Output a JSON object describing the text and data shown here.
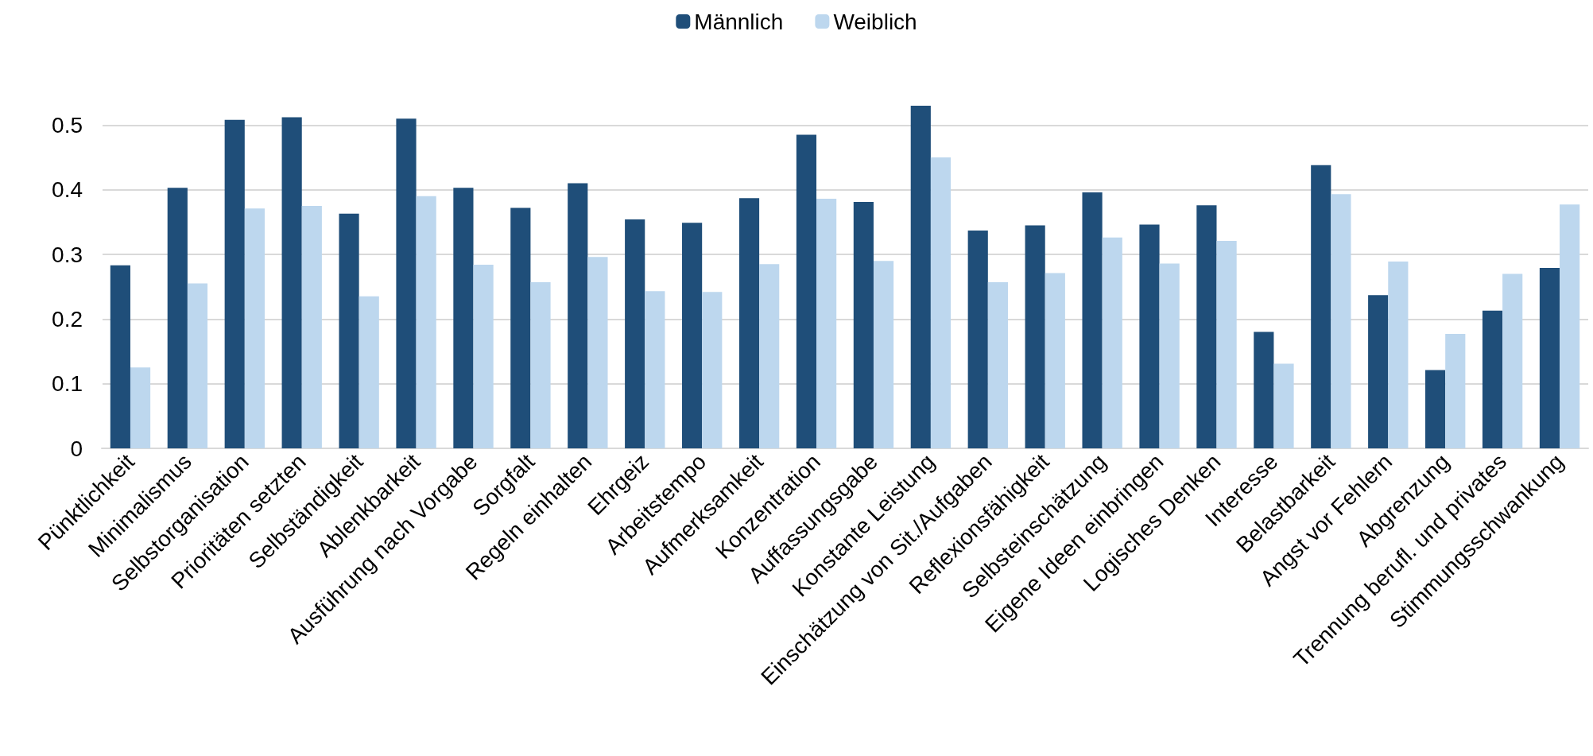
{
  "chart_data": {
    "type": "bar",
    "categories": [
      "Pünktlichkeit",
      "Minimalismus",
      "Selbstorganisation",
      "Prioritäten setzten",
      "Selbständigkeit",
      "Ablenkbarkeit",
      "Ausführung nach Vorgabe",
      "Sorgfalt",
      "Regeln einhalten",
      "Ehrgeiz",
      "Arbeitstempo",
      "Aufmerksamkeit",
      "Konzentration",
      "Auffassungsgabe",
      "Konstante Leistung",
      "Einschätzung von Sit./Aufgaben",
      "Reflexionsfähigkeit",
      "Selbsteinschätzung",
      "Eigene Ideen einbringen",
      "Logisches Denken",
      "Interesse",
      "Belastbarkeit",
      "Angst vor Fehlern",
      "Abgrenzung",
      "Trennung berufl. und privates",
      "Stimmungsschwankung"
    ],
    "series": [
      {
        "name": "Männlich",
        "color": "#1f4e79",
        "values": [
          0.283,
          0.403,
          0.508,
          0.512,
          0.363,
          0.51,
          0.403,
          0.372,
          0.41,
          0.354,
          0.349,
          0.387,
          0.485,
          0.381,
          0.53,
          0.337,
          0.345,
          0.396,
          0.346,
          0.376,
          0.18,
          0.438,
          0.237,
          0.121,
          0.213,
          0.279
        ]
      },
      {
        "name": "Weiblich",
        "color": "#bdd7ee",
        "values": [
          0.125,
          0.255,
          0.371,
          0.375,
          0.235,
          0.39,
          0.284,
          0.257,
          0.296,
          0.243,
          0.242,
          0.285,
          0.386,
          0.29,
          0.45,
          0.257,
          0.271,
          0.326,
          0.286,
          0.321,
          0.131,
          0.393,
          0.289,
          0.177,
          0.27,
          0.377
        ]
      }
    ],
    "ylim": [
      0,
      0.6
    ],
    "yticks": [
      0,
      0.1,
      0.2,
      0.3,
      0.4,
      0.5
    ],
    "grid": "y",
    "legend": "top"
  }
}
